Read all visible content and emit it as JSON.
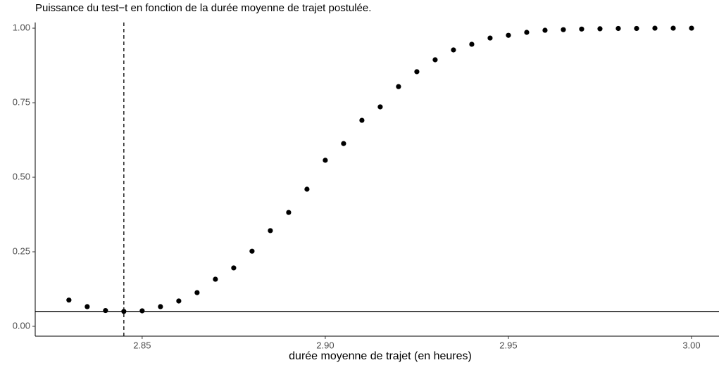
{
  "chart_data": {
    "type": "scatter",
    "title": "Puissance du test−t en fonction de la durée moyenne de trajet postulée.",
    "x_label": "durée moyenne de trajet (en heures)",
    "x": [
      2.83,
      2.835,
      2.84,
      2.845,
      2.85,
      2.855,
      2.86,
      2.865,
      2.87,
      2.875,
      2.88,
      2.885,
      2.89,
      2.895,
      2.9,
      2.905,
      2.91,
      2.915,
      2.92,
      2.925,
      2.93,
      2.935,
      2.94,
      2.945,
      2.95,
      2.955,
      2.96,
      2.965,
      2.97,
      2.975,
      2.98,
      2.985,
      2.99,
      2.995,
      3.0
    ],
    "values": [
      0.088,
      0.066,
      0.053,
      0.05,
      0.052,
      0.066,
      0.085,
      0.113,
      0.158,
      0.196,
      0.252,
      0.321,
      0.382,
      0.46,
      0.557,
      0.613,
      0.691,
      0.736,
      0.804,
      0.854,
      0.894,
      0.927,
      0.946,
      0.967,
      0.976,
      0.986,
      0.993,
      0.995,
      0.997,
      0.998,
      0.999,
      0.999,
      1.0,
      1.0,
      1.0
    ],
    "color": "#000000",
    "xlim": [
      2.8208,
      3.0075
    ],
    "ylim": [
      -0.033,
      1.019
    ],
    "xticks": [
      2.85,
      {
        "value": 2.9,
        "label": "2.90"
      },
      2.95,
      {
        "value": 3.0,
        "label": "3.00"
      }
    ],
    "yticks": [
      {
        "value": 0,
        "label": "0.00"
      },
      0.25,
      {
        "value": 0.5,
        "label": "0.50"
      },
      0.75,
      {
        "value": 1,
        "label": "1.00"
      }
    ],
    "vline": 2.845,
    "hline": 0.05,
    "grid": false
  }
}
